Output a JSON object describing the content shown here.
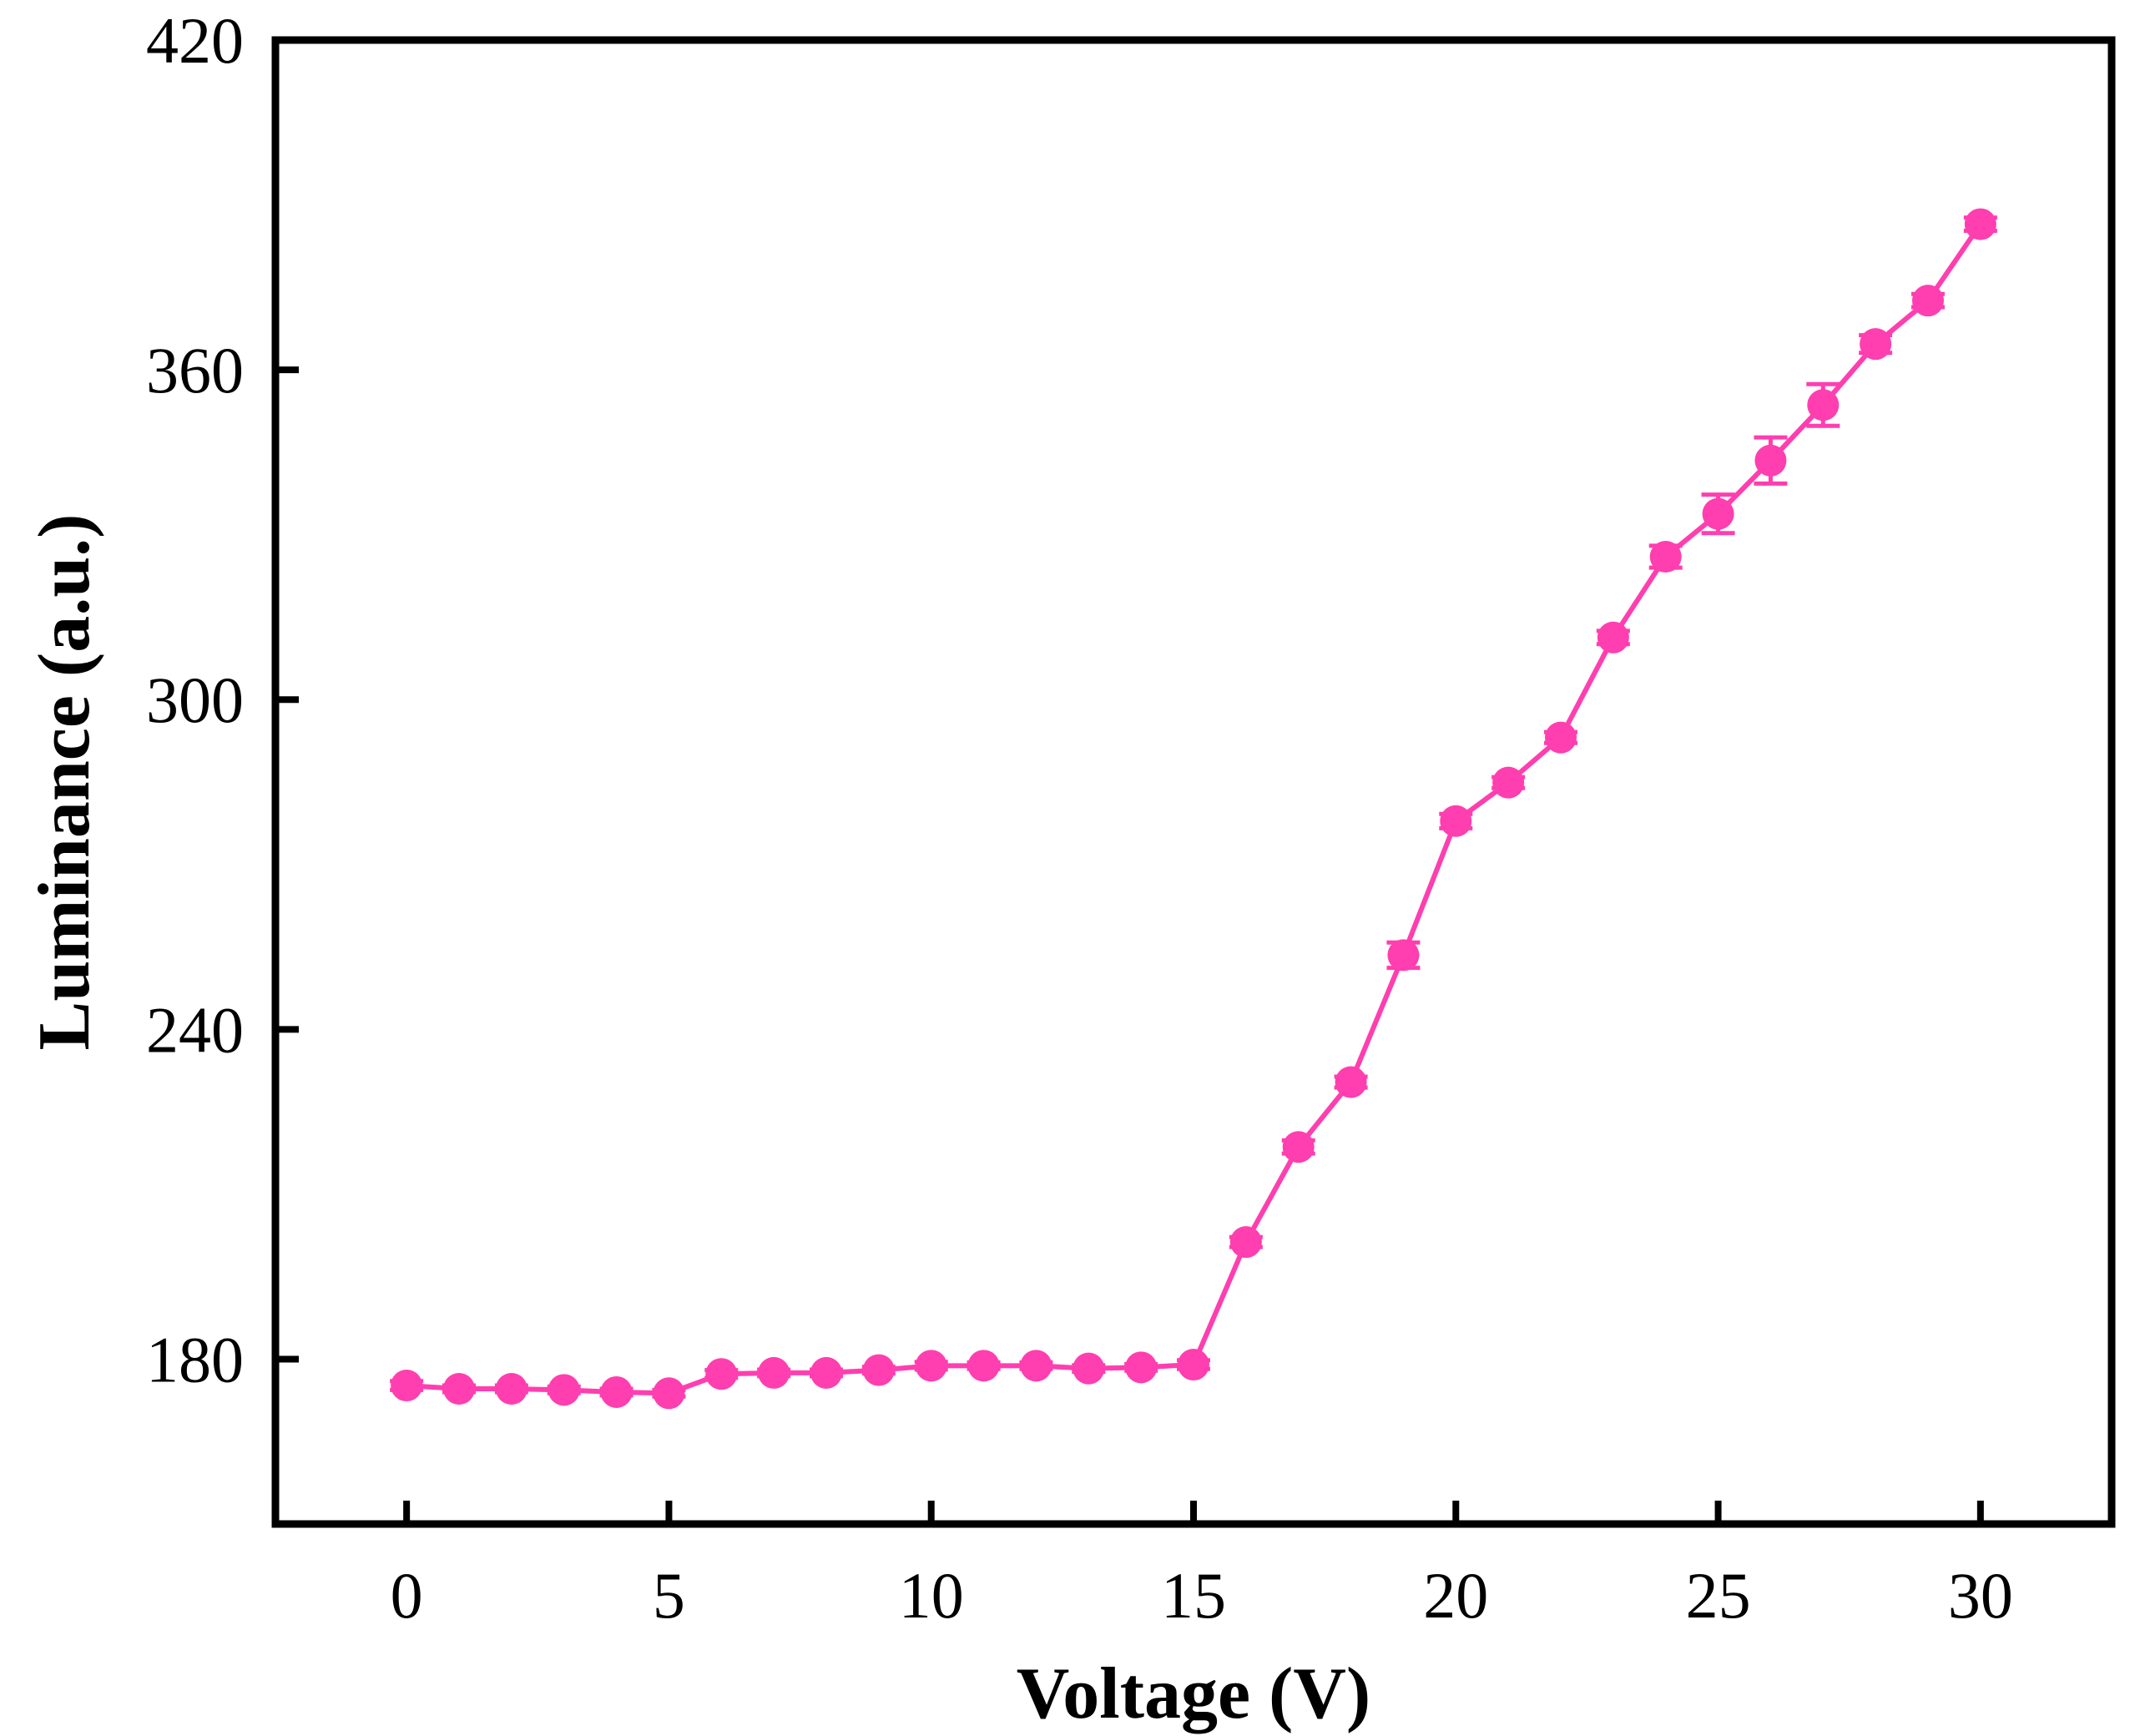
{
  "chart_data": {
    "type": "line",
    "title": "",
    "xlabel": "Voltage (V)",
    "ylabel": "Luminance (a.u.)",
    "xlim": [
      -2.5,
      32.5
    ],
    "ylim": [
      150,
      420
    ],
    "xticks": [
      0,
      5,
      10,
      15,
      20,
      25,
      30
    ],
    "yticks": [
      180,
      240,
      300,
      360,
      420
    ],
    "grid": false,
    "legend": "none",
    "series": [
      {
        "color": "#ff3eb0",
        "markers": "filled-circle",
        "error_bars": true,
        "x": [
          0,
          1,
          2,
          3,
          4,
          5,
          6,
          7,
          8,
          9,
          10,
          11,
          12,
          13,
          14,
          15,
          16,
          17,
          18,
          19,
          20,
          21,
          22,
          23,
          24,
          25,
          26,
          27,
          28,
          29,
          30
        ],
        "y": [
          175.2,
          174.6,
          174.6,
          174.4,
          174,
          173.8,
          177.3,
          177.5,
          177.5,
          178,
          178.8,
          178.8,
          178.8,
          178.3,
          178.5,
          179,
          201.3,
          218.6,
          230.4,
          253.5,
          277.9,
          284.9,
          293.1,
          311.3,
          326,
          333.8,
          343.5,
          353.6,
          364.7,
          372.6,
          386.5
        ],
        "err": [
          0.8,
          0.6,
          0.6,
          0.6,
          0.6,
          0.6,
          0.7,
          0.6,
          0.6,
          0.6,
          0.7,
          0.6,
          0.6,
          0.6,
          0.6,
          0.8,
          0.9,
          1.2,
          1,
          2.3,
          1.3,
          1,
          1,
          1.2,
          2,
          3.5,
          4.2,
          3.8,
          1.6,
          1.2,
          1.2
        ]
      }
    ]
  }
}
